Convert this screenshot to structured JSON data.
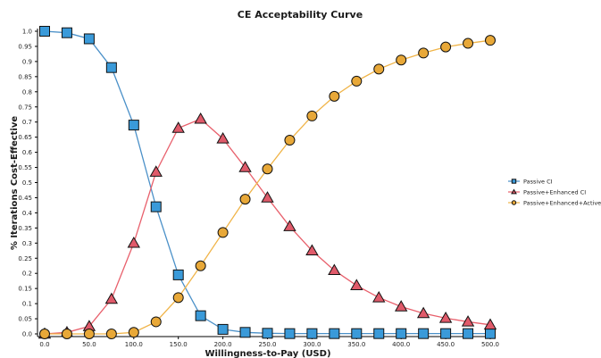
{
  "chart_data": {
    "type": "line",
    "title": "CE Acceptability Curve",
    "xlabel": "Willingness-to-Pay (USD)",
    "ylabel": "% Iterations Cost-Effective",
    "x": [
      0,
      25,
      50,
      75,
      100,
      125,
      150,
      175,
      200,
      225,
      250,
      275,
      300,
      325,
      350,
      375,
      400,
      425,
      450,
      475,
      500
    ],
    "x_ticks": [
      "0.0",
      "50.0",
      "100.0",
      "150.0",
      "200.0",
      "250.0",
      "300.0",
      "350.0",
      "400.0",
      "450.0",
      "500.0"
    ],
    "y_ticks": [
      "0.0",
      "0.05",
      "0.1",
      "0.15",
      "0.2",
      "0.25",
      "0.3",
      "0.35",
      "0.4",
      "0.45",
      "0.5",
      "0.55",
      "0.6",
      "0.65",
      "0.7",
      "0.75",
      "0.8",
      "0.85",
      "0.9",
      "0.95",
      "1.0"
    ],
    "xlim": [
      0,
      500
    ],
    "ylim": [
      0,
      1
    ],
    "grid": false,
    "legend_position": "right",
    "series": [
      {
        "name": "Passive CI",
        "color": "#3a9ad9",
        "line_color": "#4a90c8",
        "marker": "square",
        "values": [
          1.0,
          0.995,
          0.975,
          0.88,
          0.69,
          0.42,
          0.195,
          0.06,
          0.015,
          0.005,
          0.002,
          0.001,
          0.001,
          0.001,
          0.001,
          0.001,
          0.001,
          0.001,
          0.001,
          0.001,
          0.001
        ]
      },
      {
        "name": "Passive+Enhanced CI",
        "color": "#e05a6a",
        "line_color": "#e8606c",
        "marker": "triangle",
        "values": [
          0.0,
          0.005,
          0.025,
          0.115,
          0.3,
          0.535,
          0.68,
          0.71,
          0.645,
          0.55,
          0.45,
          0.355,
          0.275,
          0.21,
          0.16,
          0.12,
          0.09,
          0.068,
          0.052,
          0.04,
          0.03
        ]
      },
      {
        "name": "Passive+Enhanced+Active CI",
        "color": "#e8a838",
        "line_color": "#f0b448",
        "marker": "circle",
        "values": [
          0.0,
          0.0,
          0.0,
          0.0,
          0.005,
          0.04,
          0.12,
          0.225,
          0.335,
          0.445,
          0.545,
          0.64,
          0.72,
          0.785,
          0.835,
          0.875,
          0.905,
          0.928,
          0.948,
          0.96,
          0.97
        ]
      }
    ]
  }
}
